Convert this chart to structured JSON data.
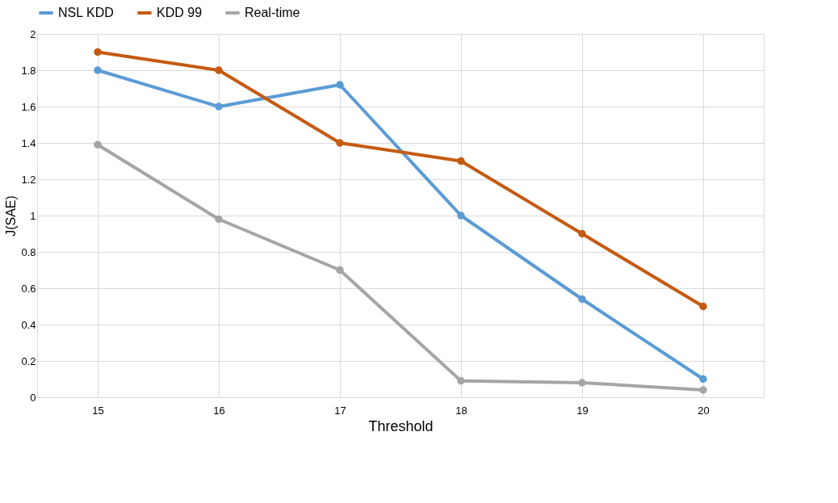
{
  "chart_data": {
    "type": "line",
    "xlabel": "Threshold",
    "ylabel": "J(SAE)",
    "categories": [
      "15",
      "16",
      "17",
      "18",
      "19",
      "20"
    ],
    "series": [
      {
        "name": "NSL KDD",
        "color": "#5b9bd5",
        "values": [
          1.8,
          1.6,
          1.72,
          1.0,
          0.54,
          0.1
        ]
      },
      {
        "name": "KDD 99",
        "color": "#c55a11",
        "values": [
          1.9,
          1.8,
          1.4,
          1.3,
          0.9,
          0.5
        ]
      },
      {
        "name": "Real-time",
        "color": "#a5a5a5",
        "values": [
          1.39,
          0.98,
          0.7,
          0.09,
          0.08,
          0.04
        ]
      }
    ],
    "ylim": [
      0,
      2
    ],
    "yticks": [
      0,
      0.2,
      0.4,
      0.6,
      0.8,
      1,
      1.2,
      1.4,
      1.6,
      1.8,
      2
    ],
    "grid": true,
    "legend": "top",
    "marker": "circle",
    "line_style": "solid"
  }
}
